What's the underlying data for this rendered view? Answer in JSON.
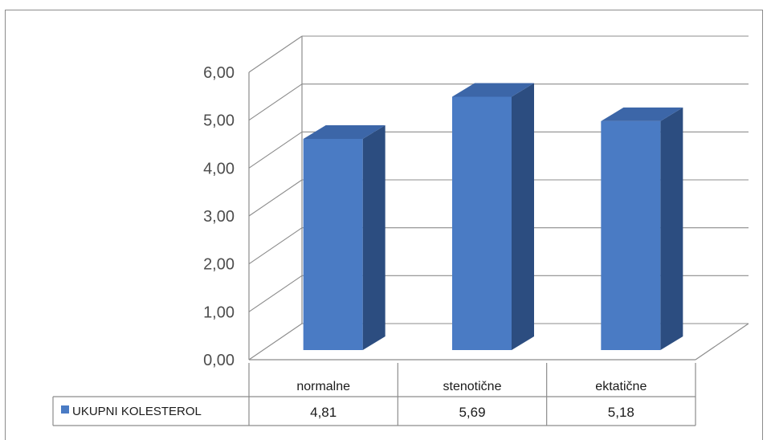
{
  "chart_data": {
    "type": "bar",
    "style": "3d-column-with-data-table",
    "categories": [
      "normalne",
      "stenotične",
      "ektatične"
    ],
    "series": [
      {
        "name": "UKUPNI KOLESTEROL",
        "values": [
          4.81,
          5.69,
          5.18
        ],
        "color": "#4a7bc4"
      }
    ],
    "value_labels": [
      "4,81",
      "5,69",
      "5,18"
    ],
    "y_ticks": [
      "0,00",
      "1,00",
      "2,00",
      "3,00",
      "4,00",
      "5,00",
      "6,00"
    ],
    "ylim": [
      0,
      6
    ],
    "grid": true,
    "legend": "in data table",
    "colors": {
      "bar_front": "#4a7bc4",
      "bar_side": "#2c4d80",
      "bar_top": "#3c66a8",
      "grid": "#8c8c8c"
    }
  }
}
